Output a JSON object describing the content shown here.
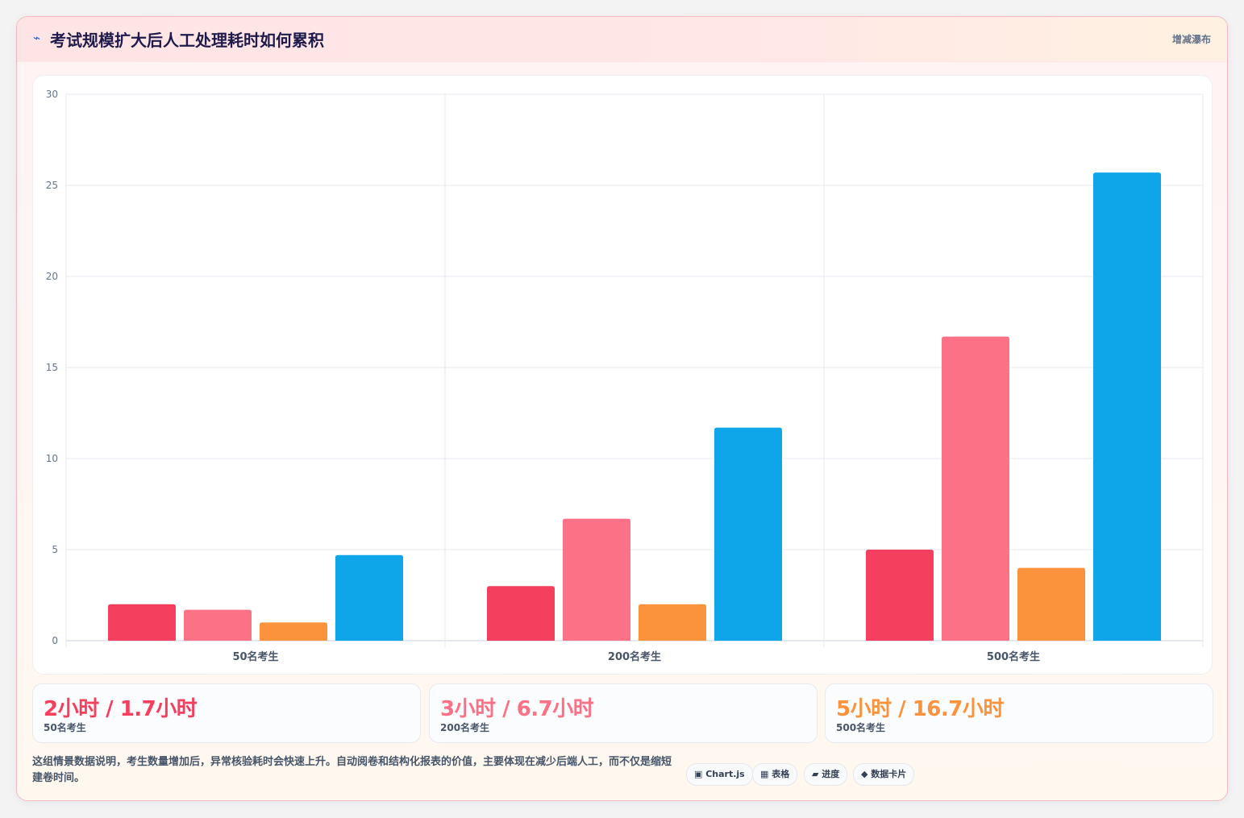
{
  "header": {
    "icon": "lightning-icon",
    "icon_glyph": "⌁",
    "title": "考试规模扩大后人工处理耗时如何累积",
    "badge": "增减瀑布"
  },
  "colors": {
    "red": "#f43f5e",
    "pink": "#fb7185",
    "orange": "#fb923c",
    "blue": "#0ea5e9"
  },
  "chart_data": {
    "type": "bar",
    "categories": [
      "50名考生",
      "200名考生",
      "500名考生"
    ],
    "series": [
      {
        "color": "#f43f5e",
        "values": [
          2,
          3,
          5
        ]
      },
      {
        "color": "#fb7185",
        "values": [
          1.7,
          6.7,
          16.7
        ]
      },
      {
        "color": "#fb923c",
        "values": [
          1,
          2,
          4
        ]
      },
      {
        "color": "#0ea5e9",
        "values": [
          4.7,
          11.7,
          25.7
        ]
      }
    ],
    "ylim": [
      0,
      30
    ],
    "yticks": [
      0,
      5,
      10,
      15,
      20,
      25,
      30
    ],
    "grid": true,
    "legend": "none"
  },
  "stats": [
    {
      "value": "2小时 / 1.7小时",
      "label": "50名考生",
      "color": "#f43f5e"
    },
    {
      "value": "3小时 / 6.7小时",
      "label": "200名考生",
      "color": "#fb7185"
    },
    {
      "value": "5小时 / 16.7小时",
      "label": "500名考生",
      "color": "#fb923c"
    }
  ],
  "footnote": "这组情景数据说明，考生数量增加后，异常核验耗时会快速上升。自动阅卷和结构化报表的价值，主要体现在减少后端人工，而不仅是缩短建卷时间。",
  "chips": [
    {
      "label": "▣ Chart.js"
    },
    {
      "label": "▦ 表格"
    },
    {
      "label": "▰ 进度"
    },
    {
      "label": "◆ 数据卡片"
    }
  ]
}
